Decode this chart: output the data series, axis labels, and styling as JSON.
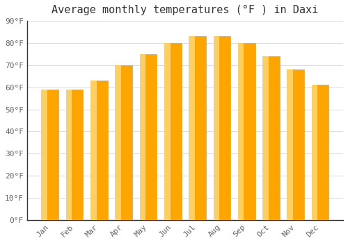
{
  "title": "Average monthly temperatures (°F ) in Daxi",
  "months": [
    "Jan",
    "Feb",
    "Mar",
    "Apr",
    "May",
    "Jun",
    "Jul",
    "Aug",
    "Sep",
    "Oct",
    "Nov",
    "Dec"
  ],
  "values": [
    59,
    59,
    63,
    70,
    75,
    80,
    83,
    83,
    80,
    74,
    68,
    61
  ],
  "bar_color_main": "#FFA500",
  "bar_color_light": "#FFD060",
  "bar_edge_color": "#AAAAAA",
  "background_color": "#FFFFFF",
  "plot_bg_color": "#FFFFFF",
  "grid_color": "#DDDDDD",
  "ylim": [
    0,
    90
  ],
  "yticks": [
    0,
    10,
    20,
    30,
    40,
    50,
    60,
    70,
    80,
    90
  ],
  "ytick_labels": [
    "0°F",
    "10°F",
    "20°F",
    "30°F",
    "40°F",
    "50°F",
    "60°F",
    "70°F",
    "80°F",
    "90°F"
  ],
  "title_fontsize": 11,
  "tick_fontsize": 8,
  "font_family": "monospace",
  "title_color": "#333333",
  "tick_color": "#666666"
}
